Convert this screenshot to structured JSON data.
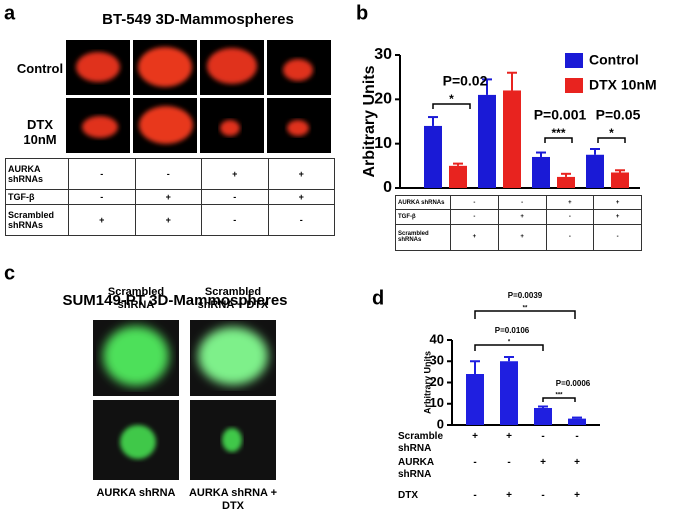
{
  "panel_labels": [
    "a",
    "b",
    "c",
    "d"
  ],
  "panel_a": {
    "title": "BT-549 3D-Mammospheres",
    "row_labels": [
      "Control",
      "DTX 10nM"
    ],
    "table": {
      "rows": [
        {
          "label": "AURKA shRNAs",
          "cells": [
            "-",
            "-",
            "+",
            "+"
          ]
        },
        {
          "label": "TGF-β",
          "cells": [
            "-",
            "+",
            "-",
            "+"
          ]
        },
        {
          "label": "Scrambled shRNAs",
          "cells": [
            "+",
            "+",
            "-",
            "-"
          ]
        }
      ]
    }
  },
  "panel_c": {
    "title": "SUM149-PT 3D-Mammospheres",
    "top_labels": [
      "Scrambled shRNA",
      "Scrambled shRNA + DTX"
    ],
    "bottom_labels": [
      "AURKA shRNA",
      "AURKA shRNA + DTX"
    ]
  },
  "chart_data": [
    {
      "type": "bar",
      "y_label": "Arbitrary Units",
      "categories": [
        null,
        null,
        null,
        null
      ],
      "series": [
        {
          "name": "Control",
          "color": "#1a1ad6",
          "values": [
            14,
            21,
            7,
            7.5
          ],
          "errors": [
            2,
            3.5,
            1,
            1.3
          ]
        },
        {
          "name": "DTX 10nM",
          "color": "#e8231f",
          "values": [
            5,
            22,
            2.5,
            3.5
          ],
          "errors": [
            0.5,
            4,
            0.7,
            0.5
          ]
        }
      ],
      "ylim": [
        0,
        30
      ],
      "yticks": [
        0,
        10,
        20,
        30
      ],
      "legend": "upper right",
      "annotations": [
        {
          "text": "P=0.02",
          "stars": "*"
        },
        {
          "text": "P=0.001",
          "stars": "***"
        },
        {
          "text": "P=0.05",
          "stars": "*"
        }
      ],
      "table": {
        "rows": [
          {
            "label": "AURKA shRNAs",
            "cells": [
              "-",
              "-",
              "+",
              "+"
            ]
          },
          {
            "label": "TGF-β",
            "cells": [
              "-",
              "+",
              "-",
              "+"
            ]
          },
          {
            "label": "Scrambled shRNAs",
            "cells": [
              "+",
              "+",
              "-",
              "-"
            ]
          }
        ]
      }
    },
    {
      "type": "bar",
      "y_label": "Arbitrary Units",
      "categories": [
        null,
        null,
        null,
        null
      ],
      "series": [
        {
          "color": "#1f1fe0",
          "values": [
            24,
            30,
            8,
            3
          ],
          "errors": [
            6,
            2,
            0.7,
            0.5
          ]
        }
      ],
      "ylim": [
        0,
        40
      ],
      "yticks": [
        0,
        10,
        20,
        30,
        40
      ],
      "annotations": [
        {
          "text": "P=0.0039",
          "stars": "**"
        },
        {
          "text": "P=0.0106",
          "stars": "*"
        },
        {
          "text": "P=0.0006",
          "stars": "***"
        }
      ],
      "table": {
        "rows": [
          {
            "label": "Scramble shRNA",
            "cells": [
              "+",
              "+",
              "-",
              "-"
            ]
          },
          {
            "label": "AURKA shRNA",
            "cells": [
              "-",
              "-",
              "+",
              "+"
            ]
          },
          {
            "label": "DTX",
            "cells": [
              "-",
              "+",
              "-",
              "+"
            ]
          }
        ]
      }
    }
  ]
}
